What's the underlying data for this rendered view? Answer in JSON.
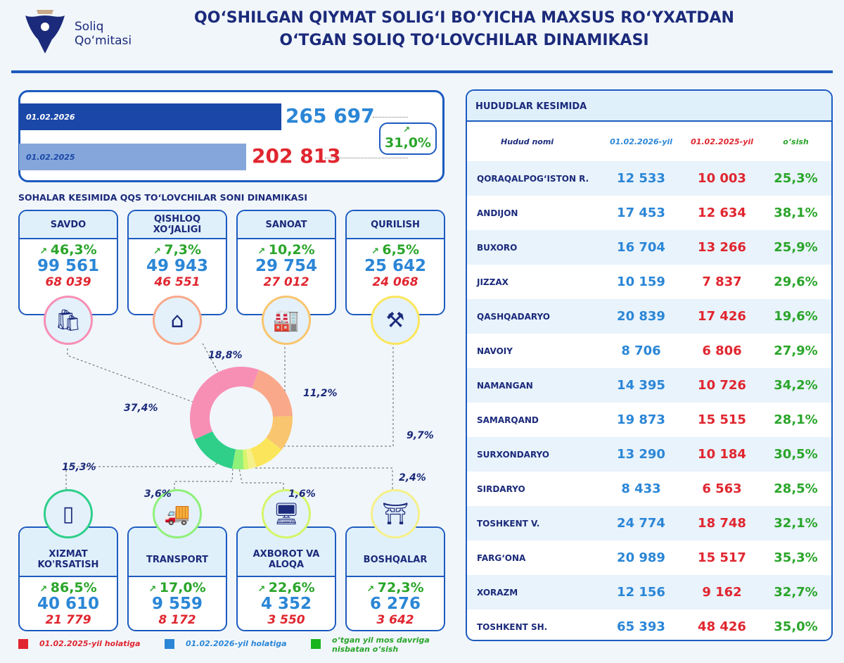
{
  "header": {
    "logo_text_1": "Soliq",
    "logo_text_2": "Qo‘mitasi",
    "title_1": "QO‘SHILGAN QIYMAT SOLIG‘I BO‘YICHA MAXSUS RO‘YXATDAN",
    "title_2": "O‘TGAN SOLIQ TO‘LOVCHILAR DINAMIKASI"
  },
  "colors": {
    "navy": "#1b2a7a",
    "blue": "#2b86d6",
    "red": "#e0262f",
    "green": "#2aa52a",
    "border": "#1d5bbf"
  },
  "total": {
    "date_2026": "01.02.2026",
    "value_2026": "265 697",
    "date_2025": "01.02.2025",
    "value_2025": "202 813",
    "growth": "31,0%",
    "growth_icon": "trend-up-icon"
  },
  "sectors_title": "SOHALAR KESIMIDA QQS TO‘LOVCHILAR SONI DINAMIKASI",
  "sectors": [
    {
      "name": "SAVDO",
      "growth": "46,3%",
      "v2026": "99 561",
      "v2025": "68 039",
      "share": "37,4%",
      "icon": "shopping-bag-icon",
      "color": "#f78fb5"
    },
    {
      "name": "QISHLOQ XO‘JALIGI",
      "growth": "7,3%",
      "v2026": "49 943",
      "v2025": "46 551",
      "share": "18,8%",
      "icon": "greenhouse-icon",
      "color": "#f9a98a"
    },
    {
      "name": "SANOAT",
      "growth": "10,2%",
      "v2026": "29 754",
      "v2025": "27 012",
      "share": "11,2%",
      "icon": "factory-icon",
      "color": "#f9c56e"
    },
    {
      "name": "QURILISH",
      "growth": "6,5%",
      "v2026": "25 642",
      "v2025": "24 068",
      "share": "9,7%",
      "icon": "crane-icon",
      "color": "#fbe65b"
    },
    {
      "name": "XIZMAT KO'RSATISH",
      "growth": "86,5%",
      "v2026": "40 610",
      "v2025": "21 779",
      "share": "15,3%",
      "icon": "service-terminal-icon",
      "color": "#2fcf8a"
    },
    {
      "name": "TRANSPORT",
      "growth": "17,0%",
      "v2026": "9 559",
      "v2025": "8 172",
      "share": "3,6%",
      "icon": "truck-icon",
      "color": "#8ff07a"
    },
    {
      "name": "AXBOROT VA ALOQA",
      "growth": "22,6%",
      "v2026": "4 352",
      "v2025": "3 550",
      "share": "1,6%",
      "icon": "computer-icon",
      "color": "#d5f56a"
    },
    {
      "name": "BOSHQALAR",
      "growth": "72,3%",
      "v2026": "6 276",
      "v2025": "3 642",
      "share": "2,4%",
      "icon": "bridge-icon",
      "color": "#f5f08a"
    }
  ],
  "legend": {
    "red": "01.02.2025-yil holatiga",
    "blue": "01.02.2026-yil holatiga",
    "green": "o‘tgan yil mos davriga nisbatan o‘sish"
  },
  "chart_data": {
    "type": "pie",
    "variant": "donut",
    "categories": [
      "SAVDO",
      "QISHLOQ XO‘JALIGI",
      "SANOAT",
      "QURILISH",
      "XIZMAT KO'RSATISH",
      "TRANSPORT",
      "AXBOROT VA ALOQA",
      "BOSHQALAR"
    ],
    "values": [
      37.4,
      18.8,
      11.2,
      9.7,
      15.3,
      3.6,
      1.6,
      2.4
    ],
    "unit": "%"
  },
  "regions": {
    "title": "HUDUDLAR KESIMIDA",
    "columns": [
      "Hudud nomi",
      "01.02.2026-yil",
      "01.02.2025-yil",
      "o‘sish"
    ],
    "rows": [
      [
        "QORAQALPOG‘ISTON R.",
        "12 533",
        "10 003",
        "25,3%"
      ],
      [
        "ANDIJON",
        "17 453",
        "12 634",
        "38,1%"
      ],
      [
        "BUXORO",
        "16 704",
        "13 266",
        "25,9%"
      ],
      [
        "JIZZAX",
        "10 159",
        "7 837",
        "29,6%"
      ],
      [
        "QASHQADARYO",
        "20 839",
        "17 426",
        "19,6%"
      ],
      [
        "NAVOIY",
        "8 706",
        "6 806",
        "27,9%"
      ],
      [
        "NAMANGAN",
        "14 395",
        "10 726",
        "34,2%"
      ],
      [
        "SAMARQAND",
        "19 873",
        "15 515",
        "28,1%"
      ],
      [
        "SURXONDARYO",
        "13 290",
        "10 184",
        "30,5%"
      ],
      [
        "SIRDARYO",
        "8 433",
        "6 563",
        "28,5%"
      ],
      [
        "TOSHKENT V.",
        "24 774",
        "18 748",
        "32,1%"
      ],
      [
        "FARG‘ONA",
        "20 989",
        "15 517",
        "35,3%"
      ],
      [
        "XORAZM",
        "12 156",
        "9 162",
        "32,7%"
      ],
      [
        "TOSHKENT SH.",
        "65 393",
        "48 426",
        "35,0%"
      ]
    ]
  }
}
